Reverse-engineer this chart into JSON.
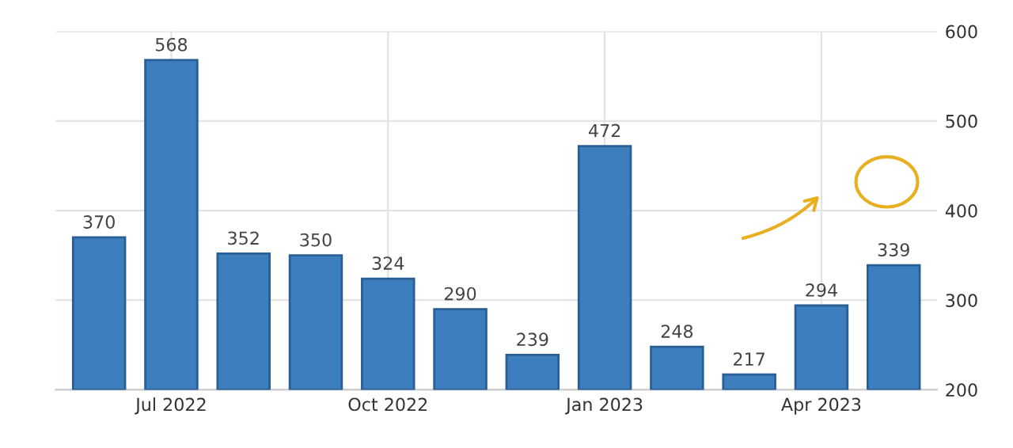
{
  "chart_data": {
    "type": "bar",
    "categories": [
      null,
      "Jul 2022",
      null,
      null,
      "Oct 2022",
      null,
      null,
      "Jan 2023",
      null,
      null,
      "Apr 2023",
      null
    ],
    "values": [
      370,
      568,
      352,
      350,
      324,
      290,
      239,
      472,
      248,
      217,
      294,
      339
    ],
    "color": "#3d7ebf",
    "ylim": [
      200,
      600
    ],
    "yticks": [
      200,
      300,
      400,
      500,
      600
    ],
    "grid": true,
    "data_labels": true
  }
}
